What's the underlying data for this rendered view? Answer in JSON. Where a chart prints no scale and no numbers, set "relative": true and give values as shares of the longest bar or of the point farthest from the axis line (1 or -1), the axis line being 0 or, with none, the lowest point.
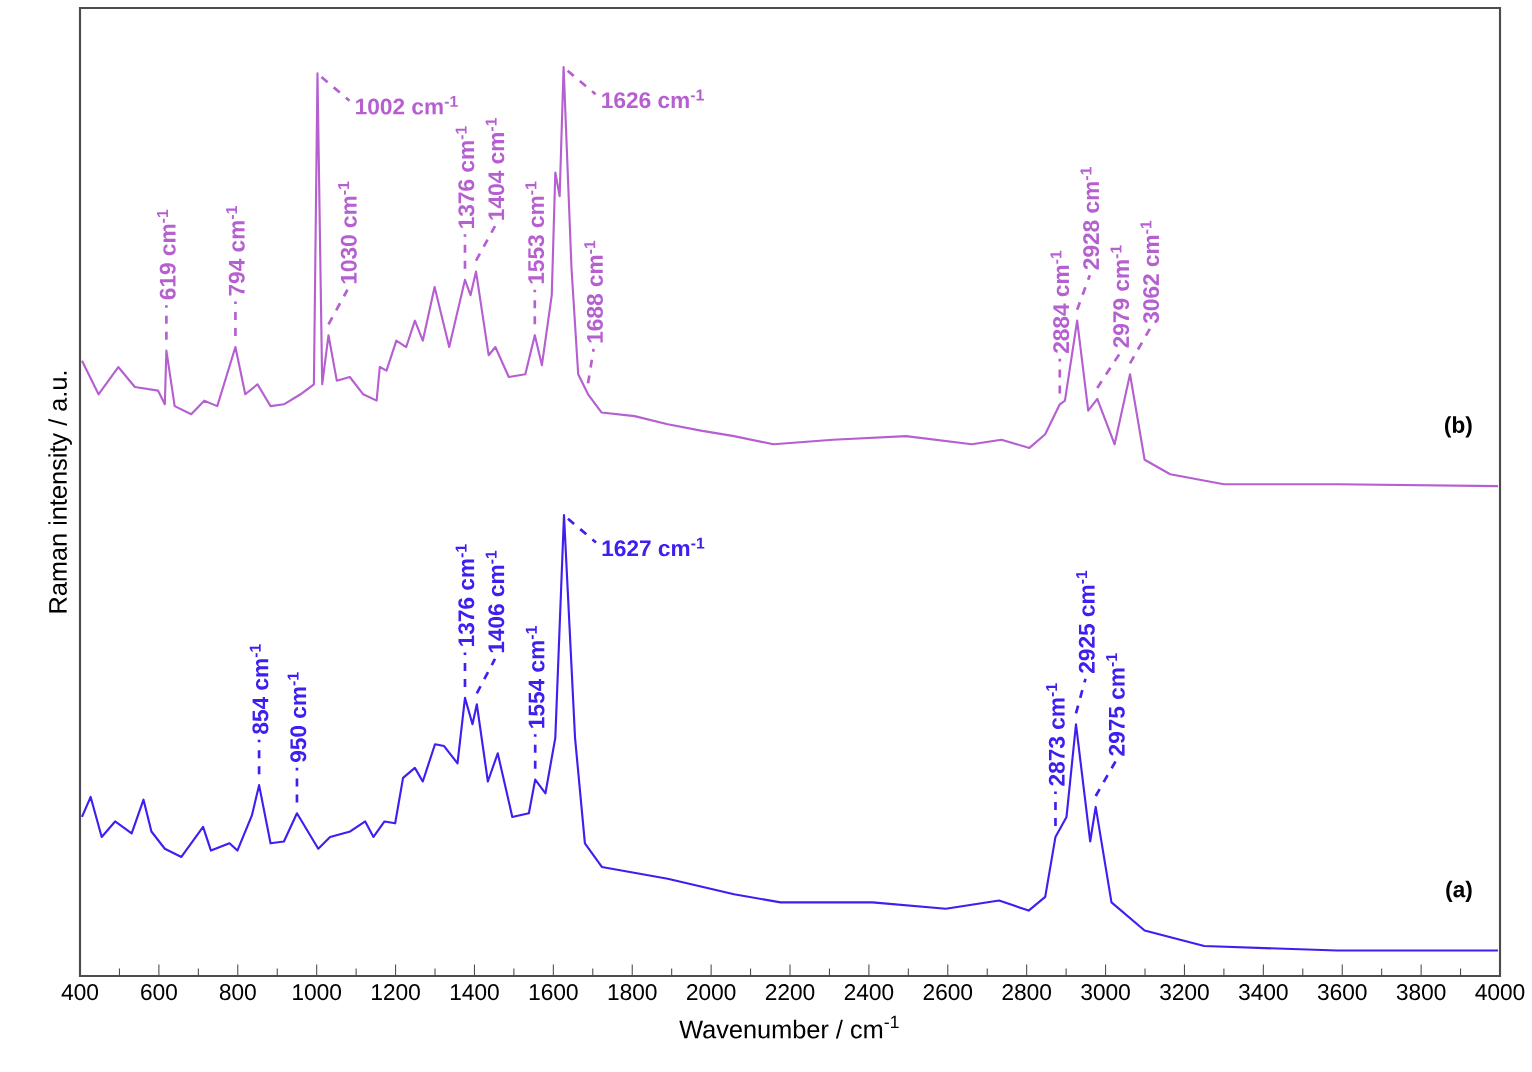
{
  "chart_data": {
    "type": "line",
    "relative": true,
    "xlabel": "Wavenumber / cm$^{-1}$",
    "ylabel": "Raman intensity / a.u.",
    "xlim": [
      400,
      4000
    ],
    "xticks": [
      400,
      600,
      800,
      1000,
      1200,
      1400,
      1600,
      1800,
      2000,
      2200,
      2400,
      2600,
      2800,
      3000,
      3200,
      3400,
      3600,
      3800,
      4000
    ],
    "series": [
      {
        "name": "(a)",
        "color": "#3d1ff0",
        "x": [
          405,
          427,
          455,
          489,
          531,
          561,
          581,
          615,
          657,
          712,
          732,
          779,
          799,
          836,
          854,
          883,
          917,
          950,
          1004,
          1034,
          1085,
          1123,
          1144,
          1172,
          1199,
          1219,
          1249,
          1269,
          1300,
          1323,
          1357,
          1376,
          1395,
          1406,
          1434,
          1459,
          1496,
          1538,
          1554,
          1580,
          1605,
          1627,
          1655,
          1680,
          1723,
          1890,
          2058,
          2176,
          2409,
          2595,
          2730,
          2805,
          2847,
          2873,
          2901,
          2925,
          2961,
          2975,
          3015,
          3099,
          3250,
          3587,
          3995
        ],
        "values": [
          0.175,
          0.197,
          0.153,
          0.17,
          0.157,
          0.194,
          0.159,
          0.14,
          0.131,
          0.164,
          0.138,
          0.146,
          0.138,
          0.177,
          0.21,
          0.146,
          0.148,
          0.179,
          0.14,
          0.153,
          0.159,
          0.17,
          0.153,
          0.17,
          0.168,
          0.218,
          0.229,
          0.214,
          0.255,
          0.253,
          0.234,
          0.306,
          0.277,
          0.299,
          0.214,
          0.245,
          0.175,
          0.179,
          0.216,
          0.201,
          0.262,
          0.507,
          0.262,
          0.146,
          0.12,
          0.107,
          0.09,
          0.081,
          0.081,
          0.074,
          0.083,
          0.072,
          0.087,
          0.153,
          0.175,
          0.277,
          0.148,
          0.186,
          0.081,
          0.05,
          0.033,
          0.028,
          0.028
        ]
      },
      {
        "name": "(b)",
        "color": "#b55fd0",
        "x": [
          405,
          447,
          497,
          539,
          598,
          615,
          619,
          640,
          682,
          715,
          748,
          794,
          819,
          850,
          883,
          917,
          959,
          993,
          1002,
          1014,
          1030,
          1051,
          1084,
          1118,
          1152,
          1160,
          1177,
          1202,
          1227,
          1249,
          1269,
          1299,
          1336,
          1376,
          1390,
          1404,
          1436,
          1453,
          1487,
          1529,
          1553,
          1571,
          1596,
          1605,
          1616,
          1626,
          1646,
          1663,
          1688,
          1722,
          1806,
          1890,
          1974,
          2058,
          2158,
          2309,
          2494,
          2661,
          2736,
          2807,
          2847,
          2884,
          2897,
          2928,
          2956,
          2979,
          3023,
          3062,
          3099,
          3164,
          3300,
          3587,
          3995
        ],
        "values": [
          0.677,
          0.64,
          0.67,
          0.648,
          0.644,
          0.629,
          0.688,
          0.627,
          0.618,
          0.633,
          0.627,
          0.692,
          0.64,
          0.651,
          0.627,
          0.629,
          0.64,
          0.651,
          0.993,
          0.651,
          0.705,
          0.655,
          0.659,
          0.64,
          0.633,
          0.67,
          0.666,
          0.699,
          0.692,
          0.721,
          0.699,
          0.758,
          0.692,
          0.766,
          0.749,
          0.775,
          0.683,
          0.692,
          0.659,
          0.662,
          0.705,
          0.672,
          0.749,
          0.884,
          0.858,
          1.0,
          0.779,
          0.662,
          0.64,
          0.62,
          0.616,
          0.607,
          0.6,
          0.594,
          0.585,
          0.59,
          0.594,
          0.585,
          0.59,
          0.581,
          0.596,
          0.629,
          0.633,
          0.721,
          0.622,
          0.635,
          0.585,
          0.662,
          0.568,
          0.552,
          0.541,
          0.541,
          0.539
        ]
      }
    ],
    "annotations": [
      {
        "text": "619 cm$^{-1}$",
        "x": 619,
        "y": 0.688
      },
      {
        "text": "794 cm$^{-1}$",
        "x": 794,
        "y": 0.692
      },
      {
        "text": "1002 cm$^{-1}$",
        "x": 1002,
        "y": 0.993
      },
      {
        "text": "1030 cm$^{-1}$",
        "x": 1030,
        "y": 0.705
      },
      {
        "text": "1376 cm$^{-1}$",
        "x": 1376,
        "y": 0.766
      },
      {
        "text": "1404 cm$^{-1}$",
        "x": 1404,
        "y": 0.775
      },
      {
        "text": "1553 cm$^{-1}$",
        "x": 1553,
        "y": 0.705
      },
      {
        "text": "1626 cm$^{-1}$",
        "x": 1626,
        "y": 1.0
      },
      {
        "text": "1688 cm$^{-1}$",
        "x": 1688,
        "y": 0.64
      },
      {
        "text": "2884 cm$^{-1}$",
        "x": 2884,
        "y": 0.629
      },
      {
        "text": "2928 cm$^{-1}$",
        "x": 2928,
        "y": 0.721
      },
      {
        "text": "2979 cm$^{-1}$",
        "x": 2979,
        "y": 0.635
      },
      {
        "text": "3062 cm$^{-1}$",
        "x": 3062,
        "y": 0.662
      },
      {
        "text": "854 cm$^{-1}$",
        "x": 854,
        "y": 0.21
      },
      {
        "text": "950 cm$^{-1}$",
        "x": 950,
        "y": 0.179
      },
      {
        "text": "1376 cm$^{-1}$",
        "x": 1376,
        "y": 0.306
      },
      {
        "text": "1406 cm$^{-1}$",
        "x": 1406,
        "y": 0.299
      },
      {
        "text": "1554 cm$^{-1}$",
        "x": 1554,
        "y": 0.216
      },
      {
        "text": "1627 cm$^{-1}$",
        "x": 1627,
        "y": 0.507
      },
      {
        "text": "2873 cm$^{-1}$",
        "x": 2873,
        "y": 0.153
      },
      {
        "text": "2925 cm$^{-1}$",
        "x": 2925,
        "y": 0.277
      },
      {
        "text": "2975 cm$^{-1}$",
        "x": 2975,
        "y": 0.186
      }
    ]
  }
}
